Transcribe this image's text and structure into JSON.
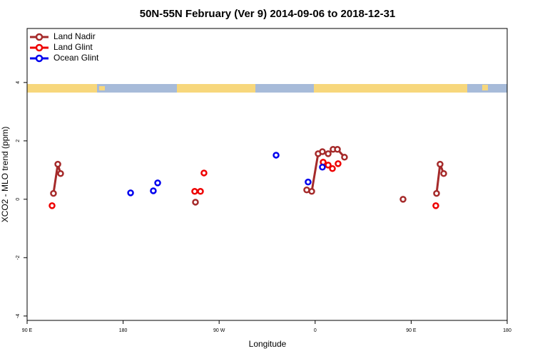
{
  "chart_data": {
    "type": "scatter",
    "title": "50N-55N February (Ver 9)   2014-09-06 to 2018-12-31",
    "x_label": "Longitude",
    "y_label": "XCO2 - MLO trend (ppm)",
    "xlim": [
      90,
      540
    ],
    "ylim": [
      -4.15,
      5.85
    ],
    "xticks": [
      {
        "value": 90,
        "label": "90 E"
      },
      {
        "value": 180,
        "label": "180"
      },
      {
        "value": 270,
        "label": "90 W"
      },
      {
        "value": 360,
        "label": "0"
      },
      {
        "value": 450,
        "label": "90 E"
      },
      {
        "value": 540,
        "label": "180"
      }
    ],
    "yticks": [
      -4,
      -2,
      0,
      2,
      4
    ],
    "legend": "top-left",
    "series": [
      {
        "name": "Land Nadir",
        "color": "#a52a2a",
        "connect": true,
        "x": [
          114.7,
          118.8,
          121.4,
          null,
          247.8,
          null,
          352.1,
          356.8,
          362.8,
          366.8,
          372.2,
          376.8,
          380.9,
          387.5,
          null,
          442.4,
          null,
          473.8,
          477.1,
          480.5
        ],
        "values": [
          0.2,
          1.2,
          0.88,
          null,
          -0.1,
          null,
          0.32,
          0.27,
          1.56,
          1.63,
          1.56,
          1.71,
          1.71,
          1.44,
          null,
          0,
          null,
          0.2,
          1.2,
          0.88
        ]
      },
      {
        "name": "Land Glint",
        "color": "#ee0000",
        "connect": false,
        "x": [
          113.4,
          247.1,
          252.5,
          255.8,
          367.5,
          372.2,
          376.2,
          381.5,
          473.1
        ],
        "values": [
          -0.22,
          0.27,
          0.27,
          0.9,
          1.27,
          1.17,
          1.05,
          1.22,
          -0.22
        ]
      },
      {
        "name": "Ocean Glint",
        "color": "#0000ee",
        "connect": false,
        "x": [
          187,
          208.3,
          212.4,
          323.4,
          353.4,
          366.8
        ],
        "values": [
          0.22,
          0.29,
          0.56,
          1.51,
          0.59,
          1.1
        ]
      }
    ]
  }
}
